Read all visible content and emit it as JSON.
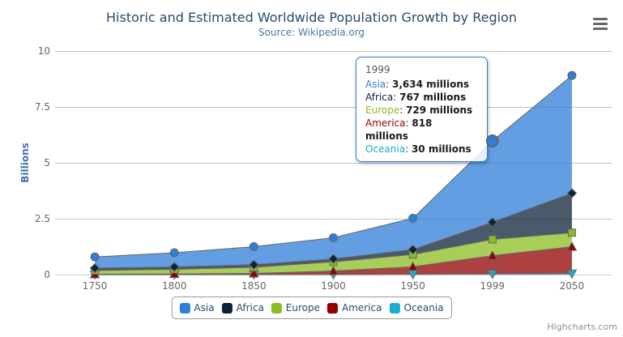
{
  "title": "Historic and Estimated Worldwide Population Growth by Region",
  "subtitle": "Source: Wikipedia.org",
  "credits": "Highcharts.com",
  "colors": {
    "title": "#274b6d",
    "subtitle": "#4d759e",
    "y_axis_title": "#4572A7",
    "axis_labels": "#666666",
    "gridline": "#C0C0C0",
    "axis_line": "#C0D0E0",
    "series_line": "#666666",
    "tooltip_border": "#2f7ed8",
    "legend_text": "#274b6d"
  },
  "chart_data": {
    "type": "area",
    "stacking": "normal",
    "title": "Historic and Estimated Worldwide Population Growth by Region",
    "subtitle": "Source: Wikipedia.org",
    "categories": [
      "1750",
      "1800",
      "1850",
      "1900",
      "1950",
      "1999",
      "2050"
    ],
    "series": [
      {
        "name": "Asia",
        "color": "#2f7ed8",
        "marker": "circle",
        "values": [
          502,
          635,
          809,
          947,
          1402,
          3634,
          5268
        ]
      },
      {
        "name": "Africa",
        "color": "#0d233a",
        "marker": "diamond",
        "values": [
          106,
          107,
          111,
          133,
          221,
          767,
          1766
        ]
      },
      {
        "name": "Europe",
        "color": "#8bbc21",
        "marker": "square",
        "values": [
          163,
          203,
          276,
          408,
          547,
          729,
          628
        ]
      },
      {
        "name": "America",
        "color": "#910000",
        "marker": "triangle",
        "values": [
          18,
          31,
          54,
          156,
          339,
          818,
          1201
        ]
      },
      {
        "name": "Oceania",
        "color": "#1aadce",
        "marker": "triangle-down",
        "values": [
          2,
          2,
          2,
          6,
          13,
          30,
          46
        ]
      }
    ],
    "values_unit": "millions",
    "ylabel": "Billions",
    "yticks": [
      0,
      2.5,
      5,
      7.5,
      10
    ],
    "ylim": [
      0,
      10
    ],
    "grid": "horizontal",
    "legend_position": "bottom",
    "stack_order_top_to_bottom": [
      "Asia",
      "Africa",
      "Europe",
      "America",
      "Oceania"
    ]
  },
  "tooltip": {
    "header": "1999",
    "rows": [
      {
        "name": "Asia",
        "color": "#2f7ed8",
        "value": "3,634 millions"
      },
      {
        "name": "Africa",
        "color": "#0d233a",
        "value": "767 millions"
      },
      {
        "name": "Europe",
        "color": "#8bbc21",
        "value": "729 millions"
      },
      {
        "name": "America",
        "color": "#910000",
        "value": "818 millions"
      },
      {
        "name": "Oceania",
        "color": "#1aadce",
        "value": "30 millions"
      }
    ]
  },
  "hover": {
    "series": "Asia",
    "category": "1999",
    "category_index": 5
  }
}
